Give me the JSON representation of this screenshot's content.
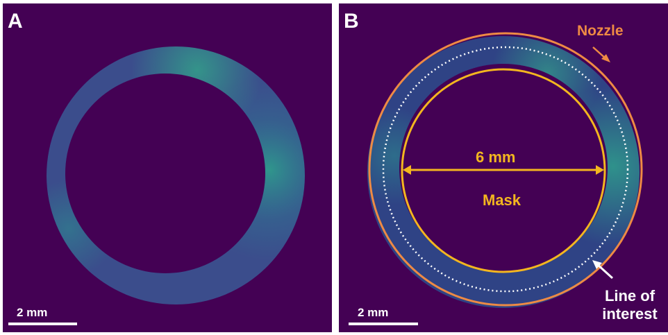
{
  "figure": {
    "panel_a": {
      "letter": "A",
      "scale_bar_label": "2 mm"
    },
    "panel_b": {
      "letter": "B",
      "scale_bar_label": "2 mm",
      "nozzle_label": "Nozzle",
      "dimension_label": "6 mm",
      "mask_label": "Mask",
      "line_of_interest_label": "Line of\ninterest"
    },
    "colors": {
      "background": "#440154",
      "ring": "#3b4d8c",
      "ring_bright": "#21918c",
      "nozzle_circle": "#ee8a44",
      "mask_circle": "#f3b61f",
      "line_of_interest": "#ffffff"
    }
  }
}
